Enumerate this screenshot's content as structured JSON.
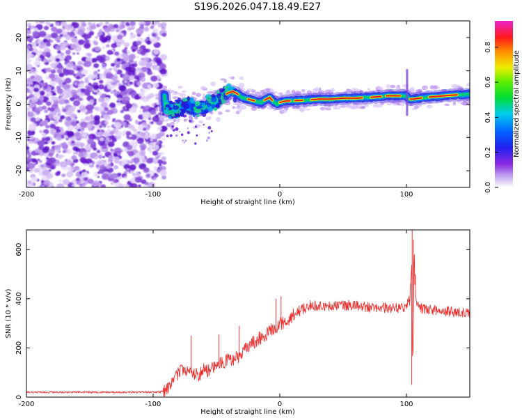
{
  "title": "S196.2026.047.18.49.E27",
  "chart_data": [
    {
      "type": "heatmap",
      "name": "spectrogram",
      "xlabel": "Height of straight line (km)",
      "ylabel": "Frequency (Hz)",
      "xlim": [
        -200,
        150
      ],
      "ylim": [
        -25,
        25
      ],
      "xticks": [
        -200,
        -100,
        0,
        100
      ],
      "yticks": [
        -20,
        -10,
        0,
        10,
        20
      ],
      "noise_region_x": [
        -200,
        -91
      ],
      "signal_region_x": [
        -91,
        150
      ],
      "ridge": {
        "x": [
          -90,
          -85,
          -80,
          -75,
          -70,
          -65,
          -60,
          -55,
          -50,
          -45,
          -40,
          -37,
          -33,
          -30,
          -25,
          -20,
          -15,
          -12,
          -8,
          -5,
          -2,
          0,
          5,
          10,
          20,
          30,
          40,
          50,
          60,
          70,
          80,
          85,
          90,
          95,
          100,
          102,
          105,
          110,
          120,
          130,
          140,
          150
        ],
        "y": [
          -1,
          -2,
          -1,
          -0.5,
          -1,
          -1.5,
          -1,
          0,
          1,
          2.5,
          3.5,
          3.8,
          3,
          2,
          1.5,
          1,
          0.5,
          1.2,
          2,
          0.8,
          0,
          0.5,
          1,
          1,
          1.2,
          1.5,
          1.5,
          1.8,
          1.8,
          2,
          2.3,
          2.5,
          2.5,
          2.5,
          2.5,
          1.5,
          1.5,
          1.8,
          2.2,
          2.5,
          2.8,
          3
        ]
      },
      "colorbar": {
        "label": "Normalized spectral amplitude",
        "range": [
          0,
          0.95
        ],
        "ticks": [
          0.0,
          0.2,
          0.4,
          0.6,
          0.8
        ],
        "tick_labels": [
          "0.0",
          "0.2",
          "0.4",
          "0.6",
          "0.8"
        ]
      }
    },
    {
      "type": "line",
      "name": "snr",
      "xlabel": "Height of straight line (km)",
      "ylabel": "SNR (10 * v/v)",
      "xlim": [
        -200,
        150
      ],
      "ylim": [
        0,
        680
      ],
      "xticks": [
        -200,
        -100,
        0,
        100
      ],
      "yticks": [
        0,
        200,
        400,
        600
      ],
      "series": [
        {
          "name": "SNR",
          "color": "#ee3333",
          "x": [
            -200,
            -180,
            -160,
            -140,
            -120,
            -100,
            -92,
            -88,
            -84,
            -80,
            -76,
            -72,
            -68,
            -64,
            -60,
            -56,
            -52,
            -48,
            -44,
            -40,
            -36,
            -32,
            -28,
            -24,
            -20,
            -16,
            -12,
            -8,
            -4,
            0,
            4,
            8,
            12,
            16,
            20,
            24,
            28,
            32,
            36,
            40,
            50,
            60,
            70,
            80,
            90,
            95,
            100,
            103,
            104,
            105,
            106,
            108,
            110,
            120,
            130,
            140,
            150
          ],
          "y": [
            20,
            20,
            20,
            20,
            20,
            20,
            22,
            40,
            70,
            100,
            110,
            95,
            100,
            90,
            110,
            105,
            120,
            135,
            140,
            155,
            150,
            170,
            190,
            210,
            225,
            240,
            245,
            270,
            280,
            300,
            305,
            320,
            340,
            355,
            365,
            368,
            372,
            372,
            370,
            370,
            372,
            375,
            365,
            365,
            360,
            365,
            360,
            420,
            540,
            150,
            540,
            380,
            362,
            355,
            350,
            345,
            345
          ],
          "spikes": [
            {
              "x": -70,
              "y": 250
            },
            {
              "x": -48,
              "y": 255
            },
            {
              "x": -32,
              "y": 290
            },
            {
              "x": -3,
              "y": 400
            },
            {
              "x": 1,
              "y": 410
            },
            {
              "x": 104.5,
              "y": 680
            },
            {
              "x": 105.5,
              "y": 640
            },
            {
              "x": 104.2,
              "y": 50
            }
          ]
        }
      ]
    }
  ]
}
